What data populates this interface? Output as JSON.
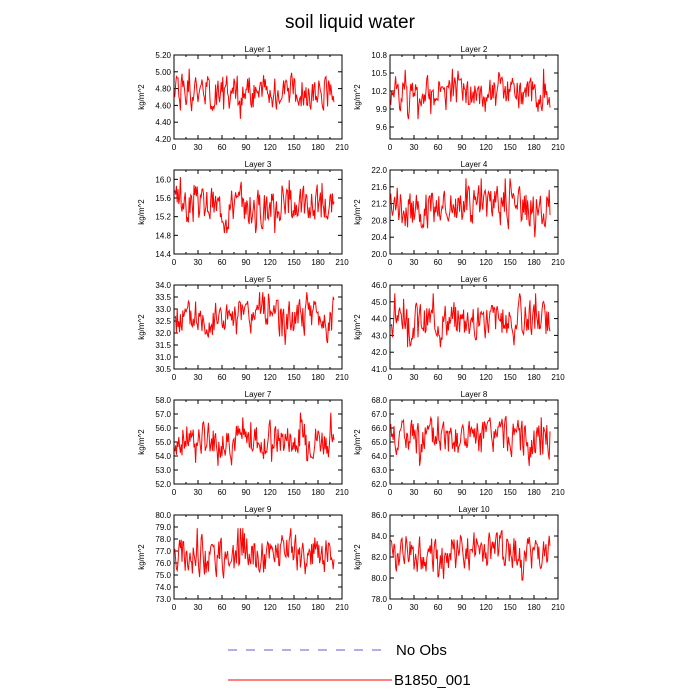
{
  "figure": {
    "title": "soil liquid water",
    "legend": [
      {
        "label": "No Obs",
        "color": "#6a5acd",
        "style": "dashed"
      },
      {
        "label": "B1850_001",
        "color": "#ff0000",
        "style": "solid"
      }
    ]
  },
  "chart_data": [
    {
      "type": "line",
      "title": "Layer 1",
      "ylabel": "kg/m^2",
      "xlim": [
        0,
        210
      ],
      "ylim": [
        4.2,
        5.2
      ],
      "xticks": [
        "0",
        "30",
        "60",
        "90",
        "120",
        "150",
        "180",
        "210"
      ],
      "yticks": [
        "4.20",
        "4.40",
        "4.60",
        "4.80",
        "5.00",
        "5.20"
      ],
      "series": [
        {
          "color": "#ff0000",
          "x_start": 1,
          "x_end": 200,
          "base": 4.76,
          "amp": 0.32,
          "seed": 1
        }
      ]
    },
    {
      "type": "line",
      "title": "Layer 2",
      "ylabel": "kg/m^2",
      "xlim": [
        0,
        210
      ],
      "ylim": [
        9.4,
        10.8
      ],
      "xticks": [
        "0",
        "30",
        "60",
        "90",
        "120",
        "150",
        "180",
        "210"
      ],
      "yticks": [
        "9.6",
        "9.9",
        "10.2",
        "10.5",
        "10.8"
      ],
      "series": [
        {
          "color": "#ff0000",
          "x_start": 1,
          "x_end": 200,
          "base": 10.15,
          "amp": 0.42,
          "seed": 2
        }
      ]
    },
    {
      "type": "line",
      "title": "Layer 3",
      "ylabel": "kg/m^2",
      "xlim": [
        0,
        210
      ],
      "ylim": [
        14.4,
        16.2
      ],
      "xticks": [
        "0",
        "30",
        "60",
        "90",
        "120",
        "150",
        "180",
        "210"
      ],
      "yticks": [
        "14.4",
        "14.8",
        "15.2",
        "15.6",
        "16.0"
      ],
      "series": [
        {
          "color": "#ff0000",
          "x_start": 1,
          "x_end": 200,
          "base": 15.45,
          "amp": 0.6,
          "seed": 3
        }
      ]
    },
    {
      "type": "line",
      "title": "Layer 4",
      "ylabel": "kg/m^2",
      "xlim": [
        0,
        210
      ],
      "ylim": [
        20.0,
        22.0
      ],
      "xticks": [
        "0",
        "30",
        "60",
        "90",
        "120",
        "150",
        "180",
        "210"
      ],
      "yticks": [
        "20.0",
        "20.4",
        "20.8",
        "21.2",
        "21.6",
        "22.0"
      ],
      "series": [
        {
          "color": "#ff0000",
          "x_start": 1,
          "x_end": 200,
          "base": 21.1,
          "amp": 0.7,
          "seed": 4
        }
      ]
    },
    {
      "type": "line",
      "title": "Layer 5",
      "ylabel": "kg/m^2",
      "xlim": [
        0,
        210
      ],
      "ylim": [
        30.5,
        34.0
      ],
      "xticks": [
        "0",
        "30",
        "60",
        "90",
        "120",
        "150",
        "180",
        "210"
      ],
      "yticks": [
        "30.5",
        "31.0",
        "31.5",
        "32.0",
        "32.5",
        "33.0",
        "33.5",
        "34.0"
      ],
      "series": [
        {
          "color": "#ff0000",
          "x_start": 1,
          "x_end": 200,
          "base": 32.6,
          "amp": 1.1,
          "seed": 5
        }
      ]
    },
    {
      "type": "line",
      "title": "Layer 6",
      "ylabel": "kg/m^2",
      "xlim": [
        0,
        210
      ],
      "ylim": [
        41.0,
        46.0
      ],
      "xticks": [
        "0",
        "30",
        "60",
        "90",
        "120",
        "150",
        "180",
        "210"
      ],
      "yticks": [
        "41.0",
        "42.0",
        "43.0",
        "44.0",
        "45.0",
        "46.0"
      ],
      "series": [
        {
          "color": "#ff0000",
          "x_start": 1,
          "x_end": 200,
          "base": 43.9,
          "amp": 1.6,
          "seed": 6
        }
      ]
    },
    {
      "type": "line",
      "title": "Layer 7",
      "ylabel": "kg/m^2",
      "xlim": [
        0,
        210
      ],
      "ylim": [
        52.0,
        58.0
      ],
      "xticks": [
        "0",
        "30",
        "60",
        "90",
        "120",
        "150",
        "180",
        "210"
      ],
      "yticks": [
        "52.0",
        "53.0",
        "54.0",
        "55.0",
        "56.0",
        "57.0",
        "58.0"
      ],
      "series": [
        {
          "color": "#ff0000",
          "x_start": 1,
          "x_end": 200,
          "base": 55.2,
          "amp": 1.9,
          "seed": 7
        }
      ]
    },
    {
      "type": "line",
      "title": "Layer 8",
      "ylabel": "kg/m^2",
      "xlim": [
        0,
        210
      ],
      "ylim": [
        62.0,
        68.0
      ],
      "xticks": [
        "0",
        "30",
        "60",
        "90",
        "120",
        "150",
        "180",
        "210"
      ],
      "yticks": [
        "62.0",
        "63.0",
        "64.0",
        "65.0",
        "66.0",
        "67.0",
        "68.0"
      ],
      "series": [
        {
          "color": "#ff0000",
          "x_start": 1,
          "x_end": 200,
          "base": 65.3,
          "amp": 2.0,
          "seed": 8
        }
      ]
    },
    {
      "type": "line",
      "title": "Layer 9",
      "ylabel": "kg/m^2",
      "xlim": [
        0,
        210
      ],
      "ylim": [
        73.0,
        80.0
      ],
      "xticks": [
        "0",
        "30",
        "60",
        "90",
        "120",
        "150",
        "180",
        "210"
      ],
      "yticks": [
        "73.0",
        "74.0",
        "75.0",
        "76.0",
        "77.0",
        "78.0",
        "79.0",
        "80.0"
      ],
      "series": [
        {
          "color": "#ff0000",
          "x_start": 1,
          "x_end": 200,
          "base": 76.6,
          "amp": 2.3,
          "seed": 9
        }
      ]
    },
    {
      "type": "line",
      "title": "Layer 10",
      "ylabel": "kg/m^2",
      "xlim": [
        0,
        210
      ],
      "ylim": [
        78.0,
        86.0
      ],
      "xticks": [
        "0",
        "30",
        "60",
        "90",
        "120",
        "150",
        "180",
        "210"
      ],
      "yticks": [
        "78.0",
        "80.0",
        "82.0",
        "84.0",
        "86.0"
      ],
      "series": [
        {
          "color": "#ff0000",
          "x_start": 1,
          "x_end": 200,
          "base": 82.4,
          "amp": 2.6,
          "seed": 10
        }
      ]
    }
  ]
}
